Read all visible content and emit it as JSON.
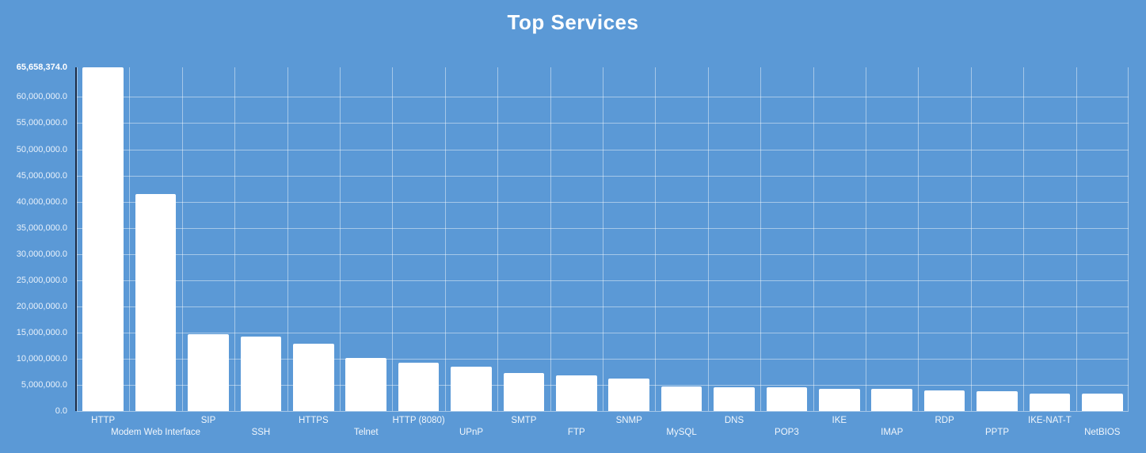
{
  "colors": {
    "background": "#5b99d6",
    "bar": "#ffffff",
    "grid": "rgba(255,255,255,0.45)",
    "axis_line": "#1c2b45",
    "tick_text": "#eaf2fb",
    "max_label_text": "#ffffff",
    "title_text": "#ffffff"
  },
  "chart_data": {
    "type": "bar",
    "title": "Top Services",
    "xlabel": "",
    "ylabel": "",
    "grid": true,
    "legend": false,
    "ymax": 65658374,
    "ymax_label": "65,658,374.0",
    "ylim": [
      0,
      65658374
    ],
    "yticks": [
      {
        "v": 0,
        "label": "0.0"
      },
      {
        "v": 5000000,
        "label": "5,000,000.0"
      },
      {
        "v": 10000000,
        "label": "10,000,000.0"
      },
      {
        "v": 15000000,
        "label": "15,000,000.0"
      },
      {
        "v": 20000000,
        "label": "20,000,000.0"
      },
      {
        "v": 25000000,
        "label": "25,000,000.0"
      },
      {
        "v": 30000000,
        "label": "30,000,000.0"
      },
      {
        "v": 35000000,
        "label": "35,000,000.0"
      },
      {
        "v": 40000000,
        "label": "40,000,000.0"
      },
      {
        "v": 45000000,
        "label": "45,000,000.0"
      },
      {
        "v": 50000000,
        "label": "50,000,000.0"
      },
      {
        "v": 55000000,
        "label": "55,000,000.0"
      },
      {
        "v": 60000000,
        "label": "60,000,000.0"
      }
    ],
    "categories": [
      "HTTP",
      "Modem Web Interface",
      "SIP",
      "SSH",
      "HTTPS",
      "Telnet",
      "HTTP (8080)",
      "UPnP",
      "SMTP",
      "FTP",
      "SNMP",
      "MySQL",
      "DNS",
      "POP3",
      "IKE",
      "IMAP",
      "RDP",
      "PPTP",
      "IKE-NAT-T",
      "NetBIOS"
    ],
    "values": [
      65658374,
      41400000,
      14700000,
      14200000,
      12900000,
      10100000,
      9300000,
      8500000,
      7200000,
      6800000,
      6200000,
      4700000,
      4600000,
      4500000,
      4300000,
      4200000,
      3900000,
      3800000,
      3400000,
      3300000
    ]
  }
}
